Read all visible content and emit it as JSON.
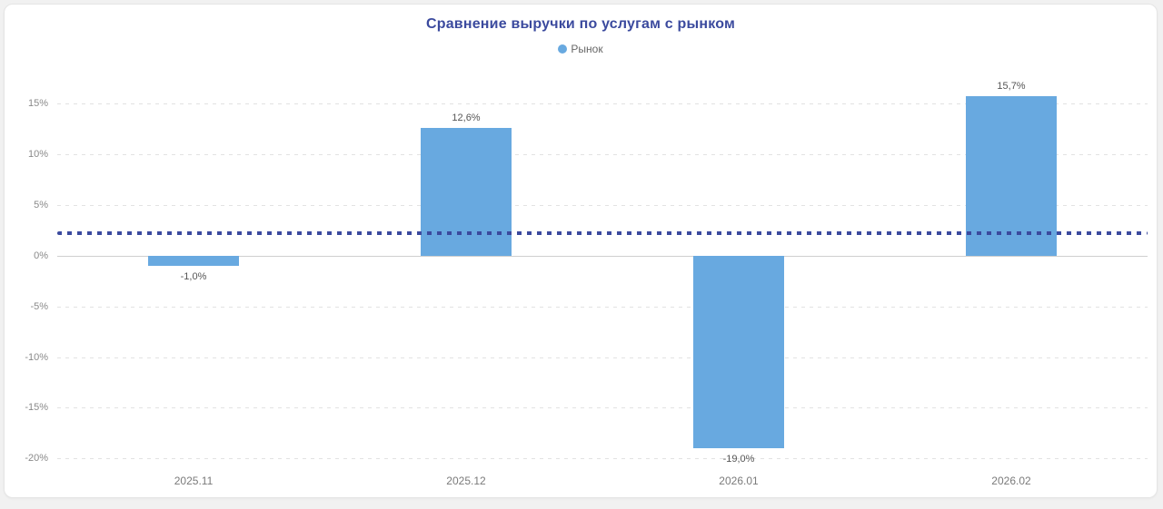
{
  "page": {
    "background_color": "#f1f1f1",
    "card_background": "#ffffff"
  },
  "chart_data": {
    "type": "bar",
    "title": "Сравнение выручки по услугам с рынком",
    "title_color": "#3b4a9e",
    "legend": [
      {
        "label": "Рынок",
        "color": "#68a9e0"
      }
    ],
    "legend_position": "top",
    "categories": [
      "2025.11",
      "2025.12",
      "2026.01",
      "2026.02"
    ],
    "series": [
      {
        "name": "Рынок",
        "values": [
          -1.0,
          12.6,
          -19.0,
          15.7
        ]
      }
    ],
    "data_labels": [
      "-1,0%",
      "12,6%",
      "-19,0%",
      "15,7%"
    ],
    "y_ticks": [
      15,
      10,
      5,
      0,
      -5,
      -10,
      -15,
      -20
    ],
    "y_tick_labels": [
      "15%",
      "10%",
      "5%",
      "0%",
      "-5%",
      "-10%",
      "-15%",
      "-20%"
    ],
    "ylim": [
      -20.5,
      17.5
    ],
    "grid": true,
    "bar_color": "#68a9e0",
    "reference_line": {
      "value": 2.2,
      "color": "#3b4a9e",
      "style": "dotted"
    }
  }
}
